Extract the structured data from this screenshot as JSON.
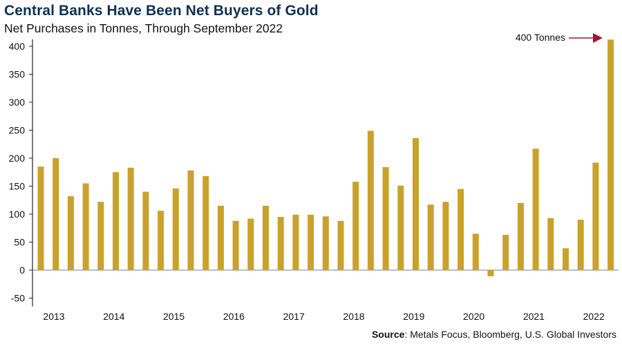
{
  "chart_data": {
    "type": "bar",
    "title": "Central Banks Have Been Net Buyers of Gold",
    "subtitle": "Net Purchases in Tonnes, Through September 2022",
    "source_label": "Source",
    "source_text": ": Metals Focus, Bloomberg, U.S. Global Investors",
    "annotation": "400 Tonnes",
    "ylim": [
      -50,
      400
    ],
    "yticks": [
      -50,
      0,
      50,
      100,
      150,
      200,
      250,
      300,
      350,
      400
    ],
    "year_labels": [
      "2013",
      "2014",
      "2015",
      "2016",
      "2017",
      "2018",
      "2019",
      "2020",
      "2021",
      "2022"
    ],
    "categories": [
      "2013 Q1",
      "2013 Q2",
      "2013 Q3",
      "2013 Q4",
      "2014 Q1",
      "2014 Q2",
      "2014 Q3",
      "2014 Q4",
      "2015 Q1",
      "2015 Q2",
      "2015 Q3",
      "2015 Q4",
      "2016 Q1",
      "2016 Q2",
      "2016 Q3",
      "2016 Q4",
      "2017 Q1",
      "2017 Q2",
      "2017 Q3",
      "2017 Q4",
      "2018 Q1",
      "2018 Q2",
      "2018 Q3",
      "2018 Q4",
      "2019 Q1",
      "2019 Q2",
      "2019 Q3",
      "2019 Q4",
      "2020 Q1",
      "2020 Q2",
      "2020 Q3",
      "2020 Q4",
      "2021 Q1",
      "2021 Q2",
      "2021 Q3",
      "2021 Q4",
      "2022 Q1",
      "2022 Q2",
      "2022 Q3"
    ],
    "values": [
      185,
      200,
      132,
      155,
      122,
      175,
      183,
      140,
      106,
      146,
      178,
      168,
      115,
      88,
      92,
      115,
      95,
      99,
      99,
      96,
      88,
      158,
      249,
      184,
      151,
      236,
      117,
      122,
      145,
      65,
      -11,
      63,
      120,
      217,
      93,
      39,
      90,
      192,
      412
    ],
    "grid": false,
    "colors": {
      "bar": "#c9a22c",
      "title": "#0d3150",
      "arrow": "#a3123a"
    }
  }
}
